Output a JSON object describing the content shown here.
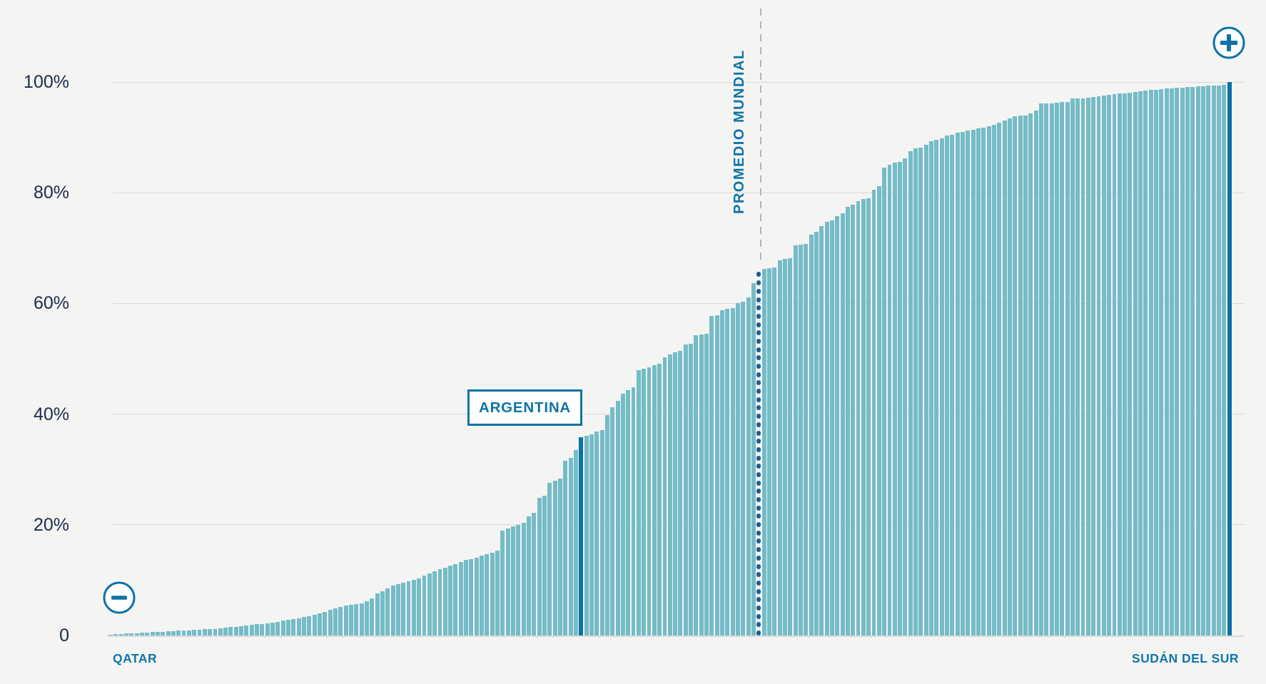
{
  "chart_data": {
    "type": "bar",
    "title": "",
    "unit": "%",
    "grid": true,
    "ylim": [
      0,
      100
    ],
    "y_ticks": [
      {
        "label": "100%",
        "value": 100
      },
      {
        "label": "80%",
        "value": 80
      },
      {
        "label": "60%",
        "value": 60
      },
      {
        "label": "40%",
        "value": 40
      },
      {
        "label": "20%",
        "value": 20
      },
      {
        "label": "0",
        "value": 0
      }
    ],
    "x_axis": {
      "left_label": "QATAR",
      "right_label": "SUDÁN DEL SUR"
    },
    "annotations": {
      "argentina": {
        "label": "ARGENTINA",
        "index": 90,
        "value": 35.8
      },
      "world_average": {
        "label": "PROMEDIO MUNDIAL",
        "index": 124,
        "value": 66
      },
      "min_country": {
        "label": "QATAR",
        "index": 0,
        "value": 0.1
      },
      "max_country": {
        "label": "SUDÁN DEL SUR",
        "index": 214,
        "value": 100
      }
    },
    "values": [
      0.1,
      0.2,
      0.3,
      0.35,
      0.4,
      0.45,
      0.5,
      0.55,
      0.6,
      0.65,
      0.7,
      0.75,
      0.8,
      0.85,
      0.9,
      0.95,
      1.0,
      1.05,
      1.1,
      1.15,
      1.2,
      1.3,
      1.4,
      1.5,
      1.6,
      1.7,
      1.8,
      1.9,
      2.0,
      2.1,
      2.2,
      2.35,
      2.5,
      2.65,
      2.8,
      2.95,
      3.1,
      3.3,
      3.5,
      3.7,
      4.0,
      4.3,
      4.6,
      4.9,
      5.2,
      5.4,
      5.5,
      5.7,
      5.8,
      6.2,
      6.7,
      7.6,
      8.0,
      8.5,
      9.0,
      9.3,
      9.6,
      9.8,
      10.0,
      10.3,
      10.8,
      11.2,
      11.6,
      12.0,
      12.3,
      12.6,
      12.9,
      13.3,
      13.6,
      13.8,
      14.1,
      14.4,
      14.7,
      14.9,
      15.3,
      19.0,
      19.3,
      19.7,
      20.0,
      20.3,
      21.5,
      22.2,
      24.9,
      25.3,
      27.6,
      28.0,
      28.4,
      31.6,
      32.1,
      33.5,
      35.8,
      36.1,
      36.4,
      36.8,
      37.1,
      39.8,
      41.3,
      42.4,
      43.7,
      44.3,
      44.8,
      48.0,
      48.2,
      48.4,
      48.8,
      49.1,
      50.2,
      50.8,
      51.2,
      51.4,
      52.6,
      52.7,
      54.3,
      54.4,
      54.5,
      57.7,
      57.9,
      58.8,
      59.0,
      59.2,
      60.1,
      60.3,
      61.1,
      63.7,
      null,
      66.3,
      66.4,
      66.5,
      67.8,
      68.0,
      68.2,
      70.5,
      70.6,
      70.8,
      72.4,
      73.0,
      74.0,
      74.8,
      75.0,
      75.8,
      76.3,
      77.5,
      77.8,
      78.5,
      78.9,
      79.0,
      80.5,
      81.2,
      84.5,
      85.0,
      85.4,
      85.6,
      86.2,
      87.5,
      88.0,
      88.2,
      88.6,
      89.3,
      89.6,
      89.8,
      90.3,
      90.5,
      90.8,
      91.0,
      91.2,
      91.4,
      91.6,
      91.8,
      92.0,
      92.3,
      92.6,
      93.0,
      93.4,
      93.8,
      93.9,
      94.0,
      94.3,
      94.8,
      96.1,
      96.15,
      96.2,
      96.3,
      96.35,
      96.4,
      97.0,
      97.05,
      97.1,
      97.2,
      97.3,
      97.4,
      97.6,
      97.7,
      97.8,
      97.9,
      98.0,
      98.1,
      98.2,
      98.3,
      98.45,
      98.55,
      98.6,
      98.7,
      98.8,
      98.9,
      98.95,
      99.0,
      99.1,
      99.15,
      99.2,
      99.25,
      99.3,
      99.35,
      99.4,
      99.5,
      100
    ],
    "legend": null
  },
  "controls": {
    "zoom_out_icon": "minus-circle",
    "zoom_in_icon": "plus-circle"
  },
  "colors": {
    "background": "#f4f4f2",
    "bar": "#74bcc7",
    "highlight_bar": "#0b71a9",
    "average_dots": "#1b5e95",
    "blue_text": "#0e73a8",
    "axis_text": "#1c2b4c",
    "gridline": "#d9d9d8",
    "dashed_guide": "#b3b5b5"
  }
}
